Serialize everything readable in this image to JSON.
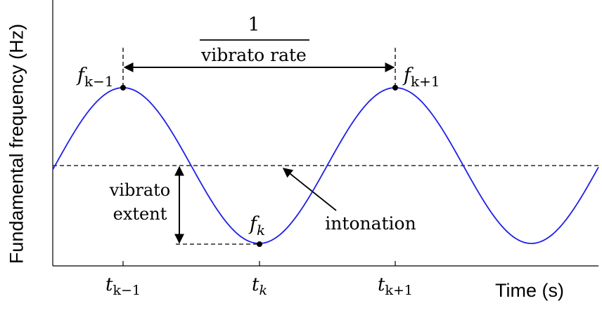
{
  "axes": {
    "y_label": "Fundamental frequency (Hz)",
    "x_label": "Time (s)"
  },
  "curve": {
    "color": "#1f1fe6"
  },
  "annotations": {
    "numerator": "1",
    "rate_label": "vibrato rate",
    "extent_line1": "vibrato",
    "extent_line2": "extent",
    "intonation": "intonation"
  },
  "points": {
    "f_prev": {
      "base": "f",
      "sub": "k−1"
    },
    "f_k": {
      "base": "f",
      "sub": "k"
    },
    "f_next": {
      "base": "f",
      "sub": "k+1"
    }
  },
  "ticks": {
    "t_prev": {
      "base": "t",
      "sub": "k−1"
    },
    "t_k": {
      "base": "t",
      "sub": "k"
    },
    "t_next": {
      "base": "t",
      "sub": "k+1"
    }
  }
}
